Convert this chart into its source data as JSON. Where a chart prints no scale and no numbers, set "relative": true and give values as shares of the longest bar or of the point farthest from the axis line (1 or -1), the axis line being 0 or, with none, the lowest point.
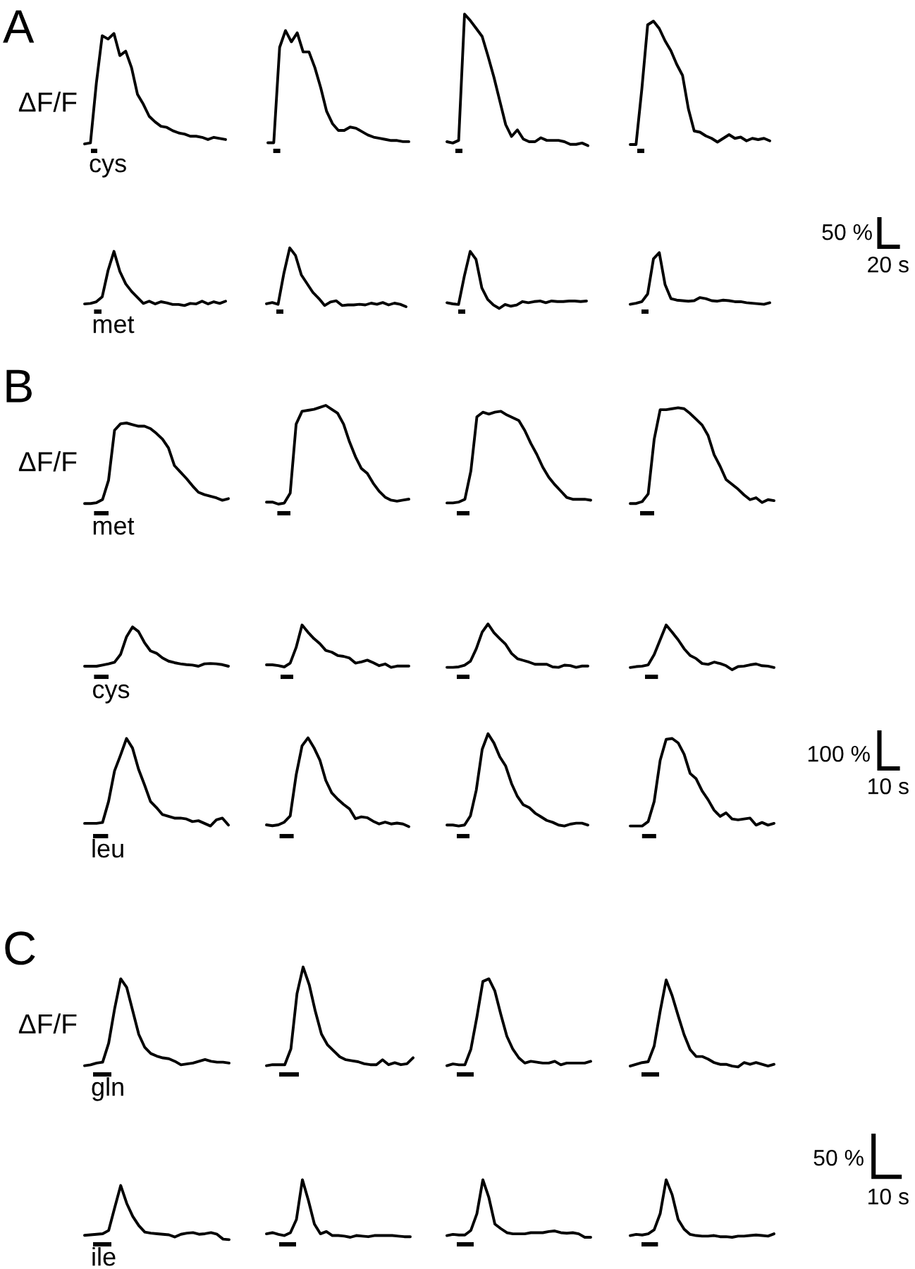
{
  "chart_data": [
    {
      "type": "line",
      "relative": true,
      "title": "A",
      "ylabel": "ΔF/F",
      "xlabel": "cys",
      "color": "#000000",
      "categories": [
        null,
        null,
        null,
        null,
        null,
        null,
        null,
        null,
        null,
        null,
        null,
        null,
        null,
        null,
        null,
        null,
        null,
        null,
        null,
        null,
        null,
        null,
        null,
        null,
        null
      ],
      "values": [
        0,
        0.01,
        0.55,
        0.98,
        0.95,
        1.0,
        0.8,
        0.84,
        0.69,
        0.45,
        0.36,
        0.25,
        0.2,
        0.16,
        0.15,
        0.12,
        0.1,
        0.09,
        0.07,
        0.07,
        0.06,
        0.04,
        0.06,
        0.05,
        0.04
      ]
    },
    {
      "type": "line",
      "relative": true,
      "color": "#000000",
      "categories": [
        null,
        null,
        null,
        null,
        null,
        null,
        null,
        null,
        null,
        null,
        null,
        null,
        null,
        null,
        null,
        null,
        null,
        null,
        null,
        null,
        null,
        null,
        null,
        null,
        null
      ],
      "values": [
        0,
        0,
        0.85,
        1.0,
        0.9,
        0.98,
        0.81,
        0.81,
        0.67,
        0.49,
        0.28,
        0.17,
        0.11,
        0.11,
        0.14,
        0.13,
        0.1,
        0.07,
        0.05,
        0.04,
        0.03,
        0.02,
        0.02,
        0.01,
        0.01
      ]
    },
    {
      "type": "line",
      "relative": true,
      "color": "#000000",
      "categories": [
        null,
        null,
        null,
        null,
        null,
        null,
        null,
        null,
        null,
        null,
        null,
        null,
        null,
        null,
        null,
        null,
        null,
        null,
        null,
        null,
        null,
        null,
        null,
        null,
        null
      ],
      "values": [
        0.03,
        0.02,
        0.04,
        1.0,
        0.95,
        0.89,
        0.83,
        0.68,
        0.52,
        0.34,
        0.16,
        0.07,
        0.12,
        0.05,
        0.03,
        0.03,
        0.06,
        0.04,
        0.04,
        0.04,
        0.03,
        0.01,
        0.01,
        0.02,
        0
      ]
    },
    {
      "type": "line",
      "relative": true,
      "color": "#000000",
      "categories": [
        null,
        null,
        null,
        null,
        null,
        null,
        null,
        null,
        null,
        null,
        null,
        null,
        null,
        null,
        null,
        null,
        null,
        null,
        null,
        null,
        null,
        null,
        null,
        null,
        null
      ],
      "values": [
        0,
        0,
        0.45,
        0.97,
        1.0,
        0.94,
        0.84,
        0.76,
        0.65,
        0.56,
        0.29,
        0.11,
        0.1,
        0.07,
        0.05,
        0.02,
        0.05,
        0.08,
        0.05,
        0.06,
        0.03,
        0.05,
        0.04,
        0.05,
        0.03
      ]
    },
    {
      "type": "line",
      "relative": true,
      "xlabel": "met",
      "color": "#000000",
      "categories": [
        null,
        null,
        null,
        null,
        null,
        null,
        null,
        null,
        null,
        null,
        null,
        null,
        null,
        null,
        null,
        null,
        null,
        null,
        null,
        null,
        null,
        null,
        null,
        null,
        null
      ],
      "values": [
        0.03,
        0.04,
        0.07,
        0.16,
        0.65,
        1.0,
        0.63,
        0.4,
        0.26,
        0.15,
        0.04,
        0.08,
        0.03,
        0.07,
        0.05,
        0.02,
        0.02,
        0,
        0.04,
        0.03,
        0.08,
        0.03,
        0.07,
        0.04,
        0.08
      ]
    },
    {
      "type": "line",
      "relative": true,
      "color": "#000000",
      "categories": [
        null,
        null,
        null,
        null,
        null,
        null,
        null,
        null,
        null,
        null,
        null,
        null,
        null,
        null,
        null,
        null,
        null,
        null,
        null,
        null,
        null,
        null,
        null,
        null,
        null
      ],
      "values": [
        0.05,
        0.07,
        0.04,
        0.57,
        1.0,
        0.87,
        0.54,
        0.39,
        0.24,
        0.14,
        0.02,
        0.08,
        0.1,
        0.02,
        0.03,
        0.03,
        0.04,
        0.03,
        0.06,
        0.04,
        0.07,
        0.03,
        0.06,
        0.04,
        0
      ]
    },
    {
      "type": "line",
      "relative": true,
      "color": "#000000",
      "categories": [
        null,
        null,
        null,
        null,
        null,
        null,
        null,
        null,
        null,
        null,
        null,
        null,
        null,
        null,
        null,
        null,
        null,
        null,
        null,
        null,
        null,
        null,
        null,
        null,
        null
      ],
      "values": [
        0.1,
        0.08,
        0.07,
        0.57,
        1.0,
        0.86,
        0.36,
        0.16,
        0.06,
        0,
        0.07,
        0.04,
        0.06,
        0.12,
        0.1,
        0.12,
        0.13,
        0.1,
        0.13,
        0.12,
        0.12,
        0.13,
        0.13,
        0.12,
        0.13
      ]
    },
    {
      "type": "line",
      "relative": true,
      "annotations": [
        "50 %",
        "20 s"
      ],
      "color": "#000000",
      "categories": [
        null,
        null,
        null,
        null,
        null,
        null,
        null,
        null,
        null,
        null,
        null,
        null,
        null,
        null,
        null,
        null,
        null,
        null,
        null,
        null,
        null,
        null,
        null,
        null,
        null
      ],
      "values": [
        0,
        0.02,
        0.05,
        0.2,
        0.88,
        1.0,
        0.38,
        0.11,
        0.08,
        0.07,
        0.06,
        0.07,
        0.13,
        0.11,
        0.07,
        0.06,
        0.08,
        0.07,
        0.05,
        0.05,
        0.03,
        0.02,
        0.01,
        0,
        0.03
      ]
    },
    {
      "type": "line",
      "relative": true,
      "title": "B",
      "ylabel": "ΔF/F",
      "xlabel": "met",
      "color": "#000000",
      "categories": [
        null,
        null,
        null,
        null,
        null,
        null,
        null,
        null,
        null,
        null,
        null,
        null,
        null,
        null,
        null,
        null,
        null,
        null,
        null,
        null,
        null,
        null,
        null,
        null,
        null
      ],
      "values": [
        0,
        0,
        0.01,
        0.05,
        0.29,
        0.91,
        0.99,
        1.0,
        0.98,
        0.96,
        0.96,
        0.93,
        0.87,
        0.8,
        0.69,
        0.47,
        0.39,
        0.31,
        0.22,
        0.14,
        0.11,
        0.09,
        0.07,
        0.04,
        0.06
      ]
    },
    {
      "type": "line",
      "relative": true,
      "color": "#000000",
      "categories": [
        null,
        null,
        null,
        null,
        null,
        null,
        null,
        null,
        null,
        null,
        null,
        null,
        null,
        null,
        null,
        null,
        null,
        null,
        null,
        null,
        null,
        null,
        null,
        null,
        null
      ],
      "values": [
        0.02,
        0.02,
        0,
        0.01,
        0.11,
        0.81,
        0.94,
        0.95,
        0.96,
        0.98,
        1.0,
        0.96,
        0.92,
        0.81,
        0.63,
        0.48,
        0.36,
        0.31,
        0.21,
        0.13,
        0.07,
        0.04,
        0.03,
        0.04,
        0.05
      ]
    },
    {
      "type": "line",
      "relative": true,
      "color": "#000000",
      "categories": [
        null,
        null,
        null,
        null,
        null,
        null,
        null,
        null,
        null,
        null,
        null,
        null,
        null,
        null,
        null,
        null,
        null,
        null,
        null,
        null,
        null,
        null,
        null,
        null,
        null
      ],
      "values": [
        0,
        0,
        0.01,
        0.04,
        0.35,
        0.94,
        0.99,
        0.97,
        0.99,
        1.0,
        0.96,
        0.93,
        0.9,
        0.79,
        0.65,
        0.53,
        0.39,
        0.28,
        0.2,
        0.13,
        0.06,
        0.04,
        0.04,
        0.04,
        0.03
      ]
    },
    {
      "type": "line",
      "relative": true,
      "color": "#000000",
      "categories": [
        null,
        null,
        null,
        null,
        null,
        null,
        null,
        null,
        null,
        null,
        null,
        null,
        null,
        null,
        null,
        null,
        null,
        null,
        null,
        null,
        null,
        null,
        null,
        null,
        null
      ],
      "values": [
        0,
        0,
        0.02,
        0.1,
        0.67,
        0.98,
        0.98,
        0.99,
        1.0,
        0.99,
        0.94,
        0.88,
        0.82,
        0.71,
        0.51,
        0.39,
        0.25,
        0.2,
        0.15,
        0.09,
        0.04,
        0.06,
        0.01,
        0.04,
        0.03
      ]
    },
    {
      "type": "line",
      "relative": true,
      "xlabel": "cys",
      "color": "#000000",
      "categories": [
        null,
        null,
        null,
        null,
        null,
        null,
        null,
        null,
        null,
        null,
        null,
        null,
        null,
        null,
        null,
        null,
        null,
        null,
        null,
        null,
        null,
        null,
        null,
        null,
        null
      ],
      "values": [
        0,
        0,
        0,
        0.03,
        0.06,
        0.1,
        0.3,
        0.75,
        1.0,
        0.88,
        0.6,
        0.39,
        0.33,
        0.21,
        0.13,
        0.09,
        0.06,
        0.04,
        0.03,
        0,
        0.06,
        0.07,
        0.06,
        0.04,
        0
      ]
    },
    {
      "type": "line",
      "relative": true,
      "color": "#000000",
      "categories": [
        null,
        null,
        null,
        null,
        null,
        null,
        null,
        null,
        null,
        null,
        null,
        null,
        null,
        null,
        null,
        null,
        null,
        null,
        null,
        null,
        null,
        null,
        null,
        null,
        null
      ],
      "values": [
        0.06,
        0.06,
        0.04,
        0.01,
        0.1,
        0.47,
        1.0,
        0.83,
        0.68,
        0.56,
        0.4,
        0.36,
        0.28,
        0.26,
        0.22,
        0.1,
        0.13,
        0.17,
        0.11,
        0.04,
        0.08,
        0,
        0.03,
        0.03,
        0.03
      ]
    },
    {
      "type": "line",
      "relative": true,
      "color": "#000000",
      "categories": [
        null,
        null,
        null,
        null,
        null,
        null,
        null,
        null,
        null,
        null,
        null,
        null,
        null,
        null,
        null,
        null,
        null,
        null,
        null,
        null,
        null,
        null,
        null,
        null,
        null
      ],
      "values": [
        0,
        0,
        0.01,
        0.05,
        0.14,
        0.43,
        0.81,
        1.0,
        0.8,
        0.66,
        0.53,
        0.32,
        0.2,
        0.16,
        0.12,
        0.07,
        0.07,
        0.07,
        0.01,
        0,
        0.05,
        0.04,
        0,
        0.03,
        0.03
      ]
    },
    {
      "type": "line",
      "relative": true,
      "color": "#000000",
      "categories": [
        null,
        null,
        null,
        null,
        null,
        null,
        null,
        null,
        null,
        null,
        null,
        null,
        null,
        null,
        null,
        null,
        null,
        null,
        null,
        null,
        null,
        null,
        null,
        null,
        null
      ],
      "values": [
        0.05,
        0.07,
        0.08,
        0.11,
        0.34,
        0.67,
        1.0,
        0.84,
        0.67,
        0.47,
        0.32,
        0.25,
        0.14,
        0.12,
        0.17,
        0.14,
        0.09,
        0,
        0.07,
        0.08,
        0.11,
        0.13,
        0.09,
        0.08,
        0.05
      ]
    },
    {
      "type": "line",
      "relative": true,
      "xlabel": "leu",
      "color": "#000000",
      "categories": [
        null,
        null,
        null,
        null,
        null,
        null,
        null,
        null,
        null,
        null,
        null,
        null,
        null,
        null,
        null,
        null,
        null,
        null,
        null,
        null,
        null,
        null,
        null,
        null,
        null
      ],
      "values": [
        0.03,
        0.03,
        0.03,
        0.04,
        0.28,
        0.63,
        0.81,
        1.0,
        0.89,
        0.65,
        0.47,
        0.28,
        0.21,
        0.13,
        0.11,
        0.09,
        0.09,
        0.08,
        0.05,
        0.06,
        0.03,
        0,
        0.07,
        0.09,
        0.01
      ]
    },
    {
      "type": "line",
      "relative": true,
      "color": "#000000",
      "categories": [
        null,
        null,
        null,
        null,
        null,
        null,
        null,
        null,
        null,
        null,
        null,
        null,
        null,
        null,
        null,
        null,
        null,
        null,
        null,
        null,
        null,
        null,
        null,
        null,
        null
      ],
      "values": [
        0.02,
        0.01,
        0.02,
        0.05,
        0.12,
        0.58,
        0.91,
        1.0,
        0.89,
        0.75,
        0.52,
        0.38,
        0.31,
        0.25,
        0.2,
        0.09,
        0.11,
        0.1,
        0.06,
        0.03,
        0.05,
        0.03,
        0.04,
        0.03,
        0
      ]
    },
    {
      "type": "line",
      "relative": true,
      "color": "#000000",
      "categories": [
        null,
        null,
        null,
        null,
        null,
        null,
        null,
        null,
        null,
        null,
        null,
        null,
        null,
        null,
        null,
        null,
        null,
        null,
        null,
        null,
        null,
        null,
        null,
        null,
        null
      ],
      "values": [
        0.01,
        0.01,
        0,
        0.01,
        0.11,
        0.39,
        0.83,
        1.0,
        0.9,
        0.75,
        0.65,
        0.46,
        0.32,
        0.23,
        0.2,
        0.14,
        0.1,
        0.06,
        0.04,
        0.01,
        0,
        0.02,
        0.03,
        0.03,
        0.01
      ]
    },
    {
      "type": "line",
      "relative": true,
      "annotations": [
        "100 %",
        "10 s"
      ],
      "color": "#000000",
      "categories": [
        null,
        null,
        null,
        null,
        null,
        null,
        null,
        null,
        null,
        null,
        null,
        null,
        null,
        null,
        null,
        null,
        null,
        null,
        null,
        null,
        null,
        null,
        null,
        null,
        null
      ],
      "values": [
        0,
        0,
        0,
        0.05,
        0.28,
        0.75,
        0.99,
        1.0,
        0.95,
        0.82,
        0.6,
        0.54,
        0.4,
        0.3,
        0.18,
        0.11,
        0.15,
        0.08,
        0.07,
        0.08,
        0.09,
        0.01,
        0.04,
        0.01,
        0.03
      ]
    },
    {
      "type": "line",
      "relative": true,
      "title": "C",
      "ylabel": "ΔF/F",
      "xlabel": "gln",
      "color": "#000000",
      "categories": [
        null,
        null,
        null,
        null,
        null,
        null,
        null,
        null,
        null,
        null,
        null,
        null,
        null,
        null,
        null,
        null,
        null,
        null,
        null,
        null,
        null,
        null,
        null,
        null,
        null
      ],
      "values": [
        0,
        0.01,
        0.03,
        0.04,
        0.26,
        0.66,
        1.0,
        0.9,
        0.63,
        0.36,
        0.21,
        0.14,
        0.11,
        0.09,
        0.08,
        0.05,
        0.01,
        0.02,
        0.03,
        0.05,
        0.07,
        0.05,
        0.04,
        0.04,
        0.03
      ]
    },
    {
      "type": "line",
      "relative": true,
      "color": "#000000",
      "categories": [
        null,
        null,
        null,
        null,
        null,
        null,
        null,
        null,
        null,
        null,
        null,
        null,
        null,
        null,
        null,
        null,
        null,
        null,
        null,
        null,
        null,
        null,
        null,
        null,
        null
      ],
      "values": [
        0,
        0.01,
        0.01,
        0.01,
        0.17,
        0.73,
        1.0,
        0.82,
        0.55,
        0.32,
        0.21,
        0.15,
        0.09,
        0.06,
        0.05,
        0.04,
        0.02,
        0.01,
        0.01,
        0.06,
        0.01,
        0.03,
        0.01,
        0.02,
        0.08
      ]
    },
    {
      "type": "line",
      "relative": true,
      "color": "#000000",
      "categories": [
        null,
        null,
        null,
        null,
        null,
        null,
        null,
        null,
        null,
        null,
        null,
        null,
        null,
        null,
        null,
        null,
        null,
        null,
        null,
        null,
        null,
        null,
        null,
        null,
        null
      ],
      "values": [
        0,
        0.02,
        0.01,
        0.01,
        0.19,
        0.56,
        0.97,
        1.0,
        0.86,
        0.59,
        0.34,
        0.19,
        0.09,
        0.03,
        0.05,
        0.04,
        0.03,
        0.03,
        0.05,
        0.01,
        0.03,
        0.03,
        0.03,
        0.03,
        0.05
      ]
    },
    {
      "type": "line",
      "relative": true,
      "color": "#000000",
      "categories": [
        null,
        null,
        null,
        null,
        null,
        null,
        null,
        null,
        null,
        null,
        null,
        null,
        null,
        null,
        null,
        null,
        null,
        null,
        null,
        null,
        null,
        null,
        null,
        null,
        null
      ],
      "values": [
        0.01,
        0.03,
        0.05,
        0.06,
        0.24,
        0.64,
        1.0,
        0.82,
        0.59,
        0.37,
        0.2,
        0.12,
        0.12,
        0.09,
        0.05,
        0.03,
        0.03,
        0.01,
        0,
        0.05,
        0.03,
        0.05,
        0.03,
        0.01,
        0.03
      ]
    },
    {
      "type": "line",
      "relative": true,
      "xlabel": "ile",
      "color": "#000000",
      "categories": [
        null,
        null,
        null,
        null,
        null,
        null,
        null,
        null,
        null,
        null,
        null,
        null,
        null,
        null,
        null,
        null,
        null,
        null,
        null,
        null,
        null,
        null,
        null,
        null,
        null
      ],
      "values": [
        0.08,
        0.09,
        0.1,
        0.11,
        0.17,
        0.59,
        1.0,
        0.67,
        0.43,
        0.26,
        0.14,
        0.12,
        0.11,
        0.1,
        0.09,
        0.05,
        0.1,
        0.12,
        0.13,
        0.1,
        0.11,
        0.13,
        0.1,
        0.01,
        0
      ]
    },
    {
      "type": "line",
      "relative": true,
      "color": "#000000",
      "categories": [
        null,
        null,
        null,
        null,
        null,
        null,
        null,
        null,
        null,
        null,
        null,
        null,
        null,
        null,
        null,
        null,
        null,
        null,
        null,
        null,
        null,
        null,
        null,
        null,
        null
      ],
      "values": [
        0.06,
        0.08,
        0.05,
        0.03,
        0.08,
        0.31,
        1.0,
        0.64,
        0.23,
        0.06,
        0.1,
        0.03,
        0.03,
        0.02,
        0,
        0.03,
        0.02,
        0.01,
        0.03,
        0.03,
        0.03,
        0.03,
        0.02,
        0.01,
        0.01
      ]
    },
    {
      "type": "line",
      "relative": true,
      "color": "#000000",
      "categories": [
        null,
        null,
        null,
        null,
        null,
        null,
        null,
        null,
        null,
        null,
        null,
        null,
        null,
        null,
        null,
        null,
        null,
        null,
        null,
        null,
        null,
        null,
        null,
        null,
        null
      ],
      "values": [
        0.03,
        0.05,
        0.04,
        0.04,
        0.12,
        0.41,
        1.0,
        0.69,
        0.23,
        0.15,
        0.08,
        0.06,
        0.06,
        0.06,
        0.08,
        0.08,
        0.08,
        0.1,
        0.11,
        0.08,
        0.07,
        0.08,
        0.06,
        0,
        0
      ]
    },
    {
      "type": "line",
      "relative": true,
      "annotations": [
        "50 %",
        "10 s"
      ],
      "color": "#000000",
      "categories": [
        null,
        null,
        null,
        null,
        null,
        null,
        null,
        null,
        null,
        null,
        null,
        null,
        null,
        null,
        null,
        null,
        null,
        null,
        null,
        null,
        null,
        null,
        null,
        null,
        null
      ],
      "values": [
        0.03,
        0.05,
        0.04,
        0.06,
        0.13,
        0.41,
        1.0,
        0.74,
        0.31,
        0.14,
        0.05,
        0.03,
        0.02,
        0.02,
        0.03,
        0.01,
        0.01,
        0,
        0.02,
        0.02,
        0.03,
        0.04,
        0.03,
        0.02,
        0.06
      ]
    }
  ]
}
